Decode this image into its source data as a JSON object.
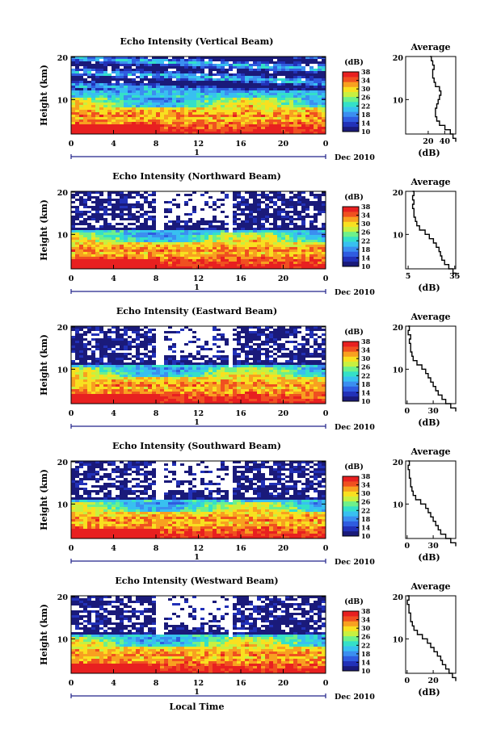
{
  "colorbar": {
    "unit": "(dB)",
    "min": 10,
    "max": 38,
    "tick_labels": [
      "38",
      "34",
      "30",
      "26",
      "22",
      "18",
      "14",
      "10"
    ],
    "colors": [
      "#1a1a7a",
      "#2231b8",
      "#2f5ce0",
      "#3b8ef0",
      "#38c0f0",
      "#34e0c8",
      "#6ef08a",
      "#c8f040",
      "#f8e020",
      "#f8a020",
      "#f05020",
      "#e82020"
    ]
  },
  "date_label": "Dec 2010",
  "day_label": "1",
  "local_time_label": "Local Time",
  "panels": [
    {
      "title": "Echo Intensity (Vertical Beam)",
      "ylabel": "Height (km)",
      "yticks": [
        "20",
        "10"
      ],
      "xticks": [
        "0",
        "4",
        "8",
        "12",
        "16",
        "20",
        "0"
      ],
      "avg_title": "Average",
      "avg_xlabel": "(dB)",
      "avg_xticks": [
        "20",
        "40"
      ],
      "avg_yticks": [
        "20",
        "10"
      ]
    },
    {
      "title": "Echo Intensity (Northward Beam)",
      "ylabel": "Height (km)",
      "yticks": [
        "20",
        "10"
      ],
      "xticks": [
        "0",
        "4",
        "8",
        "12",
        "16",
        "20",
        "0"
      ],
      "avg_title": "Average",
      "avg_xlabel": "(dB)",
      "avg_xticks": [
        "5",
        "35"
      ],
      "avg_yticks": [
        "20",
        "10"
      ]
    },
    {
      "title": "Echo Intensity (Eastward Beam)",
      "ylabel": "Height (km)",
      "yticks": [
        "20",
        "10"
      ],
      "xticks": [
        "0",
        "4",
        "8",
        "12",
        "16",
        "20",
        "0"
      ],
      "avg_title": "Average",
      "avg_xlabel": "(dB)",
      "avg_xticks": [
        "0",
        "30"
      ],
      "avg_yticks": [
        "20",
        "10"
      ]
    },
    {
      "title": "Echo Intensity (Southward Beam)",
      "ylabel": "Height (km)",
      "yticks": [
        "20",
        "10"
      ],
      "xticks": [
        "0",
        "4",
        "8",
        "12",
        "16",
        "20",
        "0"
      ],
      "avg_title": "Average",
      "avg_xlabel": "(dB)",
      "avg_xticks": [
        "0",
        "30"
      ],
      "avg_yticks": [
        "20",
        "10"
      ]
    },
    {
      "title": "Echo Intensity (Westward Beam)",
      "ylabel": "Height (km)",
      "yticks": [
        "20",
        "10"
      ],
      "xticks": [
        "0",
        "4",
        "8",
        "12",
        "16",
        "20",
        "0"
      ],
      "avg_title": "Average",
      "avg_xlabel": "(dB)",
      "avg_xticks": [
        "0",
        "20"
      ],
      "avg_yticks": [
        "20",
        "10"
      ]
    }
  ],
  "chart_data": [
    {
      "type": "heatmap",
      "title": "Echo Intensity (Vertical Beam)",
      "xlabel": "Local Time",
      "ylabel": "Height (km)",
      "xlim": [
        0,
        24
      ],
      "ylim": [
        2,
        20
      ],
      "clim": [
        10,
        38
      ],
      "x_ticks": [
        0,
        4,
        8,
        12,
        16,
        20,
        24
      ],
      "profile_shape": [
        [
          0.2,
          42
        ],
        [
          1,
          40
        ],
        [
          2,
          38
        ],
        [
          3,
          34
        ],
        [
          4,
          30
        ],
        [
          5,
          28
        ],
        [
          6,
          27
        ],
        [
          7,
          27
        ],
        [
          8,
          28
        ],
        [
          9,
          29
        ],
        [
          10,
          30
        ],
        [
          11,
          31
        ],
        [
          12,
          30
        ],
        [
          13,
          27
        ],
        [
          14,
          26
        ],
        [
          15,
          25
        ],
        [
          16,
          25
        ],
        [
          17,
          26
        ],
        [
          18,
          25
        ],
        [
          19,
          24
        ],
        [
          20,
          23
        ]
      ],
      "profile_xlim": [
        5,
        42
      ]
    },
    {
      "type": "heatmap",
      "title": "Echo Intensity (Northward Beam)",
      "xlabel": "Local Time",
      "ylabel": "Height (km)",
      "xlim": [
        0,
        24
      ],
      "ylim": [
        2,
        20
      ],
      "clim": [
        10,
        38
      ],
      "x_ticks": [
        0,
        4,
        8,
        12,
        16,
        20,
        24
      ],
      "profile_shape": [
        [
          0.2,
          36
        ],
        [
          1,
          34
        ],
        [
          2,
          31
        ],
        [
          3,
          28
        ],
        [
          4,
          26
        ],
        [
          5,
          25
        ],
        [
          6,
          24
        ],
        [
          7,
          22
        ],
        [
          8,
          20
        ],
        [
          9,
          17
        ],
        [
          10,
          14
        ],
        [
          11,
          10
        ],
        [
          12,
          8
        ],
        [
          13,
          7
        ],
        [
          14,
          6
        ],
        [
          15,
          6
        ],
        [
          16,
          5
        ],
        [
          17,
          6
        ],
        [
          18,
          5
        ],
        [
          19,
          6
        ],
        [
          20,
          5
        ]
      ],
      "profile_xlim": [
        0,
        36
      ]
    },
    {
      "type": "heatmap",
      "title": "Echo Intensity (Eastward Beam)",
      "xlabel": "Local Time",
      "ylabel": "Height (km)",
      "xlim": [
        0,
        24
      ],
      "ylim": [
        2,
        20
      ],
      "clim": [
        10,
        38
      ],
      "x_ticks": [
        0,
        4,
        8,
        12,
        16,
        20,
        24
      ],
      "profile_shape": [
        [
          0.2,
          40
        ],
        [
          1,
          36
        ],
        [
          2,
          32
        ],
        [
          3,
          29
        ],
        [
          4,
          26
        ],
        [
          5,
          24
        ],
        [
          6,
          22
        ],
        [
          7,
          20
        ],
        [
          8,
          18
        ],
        [
          9,
          16
        ],
        [
          10,
          13
        ],
        [
          11,
          9
        ],
        [
          12,
          6
        ],
        [
          13,
          5
        ],
        [
          14,
          4
        ],
        [
          15,
          4
        ],
        [
          16,
          3
        ],
        [
          17,
          4
        ],
        [
          18,
          2
        ],
        [
          19,
          3
        ],
        [
          20,
          2
        ]
      ],
      "profile_xlim": [
        0,
        40
      ]
    },
    {
      "type": "heatmap",
      "title": "Echo Intensity (Southward Beam)",
      "xlabel": "Local Time",
      "ylabel": "Height (km)",
      "xlim": [
        0,
        24
      ],
      "ylim": [
        2,
        20
      ],
      "clim": [
        10,
        38
      ],
      "x_ticks": [
        0,
        4,
        8,
        12,
        16,
        20,
        24
      ],
      "profile_shape": [
        [
          0.2,
          40
        ],
        [
          1,
          36
        ],
        [
          2,
          32
        ],
        [
          3,
          28
        ],
        [
          4,
          26
        ],
        [
          5,
          24
        ],
        [
          6,
          22
        ],
        [
          7,
          20
        ],
        [
          8,
          18
        ],
        [
          9,
          16
        ],
        [
          10,
          12
        ],
        [
          11,
          8
        ],
        [
          12,
          6
        ],
        [
          13,
          5
        ],
        [
          14,
          4
        ],
        [
          15,
          4
        ],
        [
          16,
          3
        ],
        [
          17,
          3
        ],
        [
          18,
          2
        ],
        [
          19,
          3
        ],
        [
          20,
          2
        ]
      ],
      "profile_xlim": [
        0,
        40
      ]
    },
    {
      "type": "heatmap",
      "title": "Echo Intensity (Westward Beam)",
      "xlabel": "Local Time",
      "ylabel": "Height (km)",
      "xlim": [
        0,
        24
      ],
      "ylim": [
        2,
        20
      ],
      "clim": [
        10,
        38
      ],
      "x_ticks": [
        0,
        4,
        8,
        12,
        16,
        20,
        24
      ],
      "profile_shape": [
        [
          0.2,
          30
        ],
        [
          1,
          28
        ],
        [
          2,
          26
        ],
        [
          3,
          24
        ],
        [
          4,
          22
        ],
        [
          5,
          21
        ],
        [
          6,
          19
        ],
        [
          7,
          17
        ],
        [
          8,
          15
        ],
        [
          9,
          13
        ],
        [
          10,
          10
        ],
        [
          11,
          7
        ],
        [
          12,
          5
        ],
        [
          13,
          4
        ],
        [
          14,
          3
        ],
        [
          15,
          3
        ],
        [
          16,
          2
        ],
        [
          17,
          2
        ],
        [
          18,
          1
        ],
        [
          19,
          2
        ],
        [
          20,
          1
        ]
      ],
      "profile_xlim": [
        0,
        30
      ]
    }
  ]
}
